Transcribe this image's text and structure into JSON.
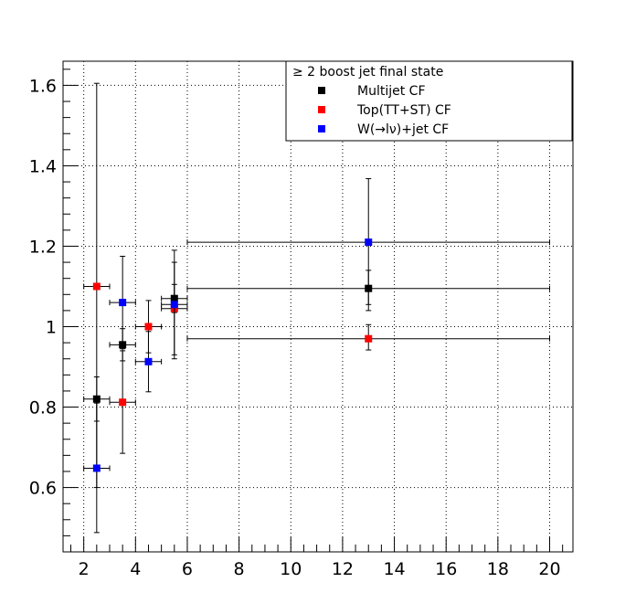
{
  "chart_data": {
    "type": "scatter",
    "title": "",
    "xlabel": "",
    "ylabel": "",
    "xlim": [
      1.2,
      20.9
    ],
    "ylim": [
      0.44,
      1.66
    ],
    "xticks": [
      2,
      4,
      6,
      8,
      10,
      12,
      14,
      16,
      18,
      20
    ],
    "xtick_labels": [
      "2",
      "4",
      "6",
      "8",
      "10",
      "12",
      "14",
      "16",
      "18",
      "20"
    ],
    "yticks": [
      0.6,
      0.8,
      1.0,
      1.2,
      1.4,
      1.6
    ],
    "ytick_labels": [
      "0.6",
      "0.8",
      "1",
      "1.2",
      "1.4",
      "1.6"
    ],
    "grid": true,
    "legend": {
      "placement": "top-right",
      "title": "≥ 2 boost jet final state"
    },
    "series": [
      {
        "name": "Multijet CF",
        "color": "#000000",
        "points": [
          {
            "x": 2.5,
            "xlo": 2.0,
            "xhi": 3.0,
            "y": 0.82,
            "ylo": 0.765,
            "yhi": 0.875
          },
          {
            "x": 3.5,
            "xlo": 3.0,
            "xhi": 4.0,
            "y": 0.955,
            "ylo": 0.915,
            "yhi": 0.995
          },
          {
            "x": 5.5,
            "xlo": 5.0,
            "xhi": 6.0,
            "y": 1.07,
            "ylo": 1.035,
            "yhi": 1.105
          },
          {
            "x": 13.0,
            "xlo": 6.0,
            "xhi": 20.0,
            "y": 1.095,
            "ylo": 1.04,
            "yhi": 1.14
          }
        ]
      },
      {
        "name": "Top(TT+ST) CF",
        "color": "#ff0000",
        "points": [
          {
            "x": 2.5,
            "xlo": 2.0,
            "xhi": 3.0,
            "y": 1.1,
            "ylo": 0.6,
            "yhi": 1.605
          },
          {
            "x": 3.5,
            "xlo": 3.0,
            "xhi": 4.0,
            "y": 0.812,
            "ylo": 0.685,
            "yhi": 0.94
          },
          {
            "x": 4.5,
            "xlo": 4.0,
            "xhi": 5.0,
            "y": 1.0,
            "ylo": 0.935,
            "yhi": 1.065
          },
          {
            "x": 5.5,
            "xlo": 5.0,
            "xhi": 6.0,
            "y": 1.045,
            "ylo": 0.93,
            "yhi": 1.16
          },
          {
            "x": 13.0,
            "xlo": 6.0,
            "xhi": 20.0,
            "y": 0.97,
            "ylo": 0.942,
            "yhi": 1.005
          }
        ]
      },
      {
        "name": "W(→lν)+jet CF",
        "color": "#0000ff",
        "points": [
          {
            "x": 2.5,
            "xlo": 2.0,
            "xhi": 3.0,
            "y": 0.648,
            "ylo": 0.488,
            "yhi": 0.81
          },
          {
            "x": 3.5,
            "xlo": 3.0,
            "xhi": 4.0,
            "y": 1.06,
            "ylo": 0.945,
            "yhi": 1.175
          },
          {
            "x": 4.5,
            "xlo": 4.0,
            "xhi": 5.0,
            "y": 0.913,
            "ylo": 0.838,
            "yhi": 0.988
          },
          {
            "x": 5.5,
            "xlo": 5.0,
            "xhi": 6.0,
            "y": 1.055,
            "ylo": 0.92,
            "yhi": 1.19
          },
          {
            "x": 13.0,
            "xlo": 6.0,
            "xhi": 20.0,
            "y": 1.21,
            "ylo": 1.055,
            "yhi": 1.368
          }
        ]
      }
    ]
  }
}
